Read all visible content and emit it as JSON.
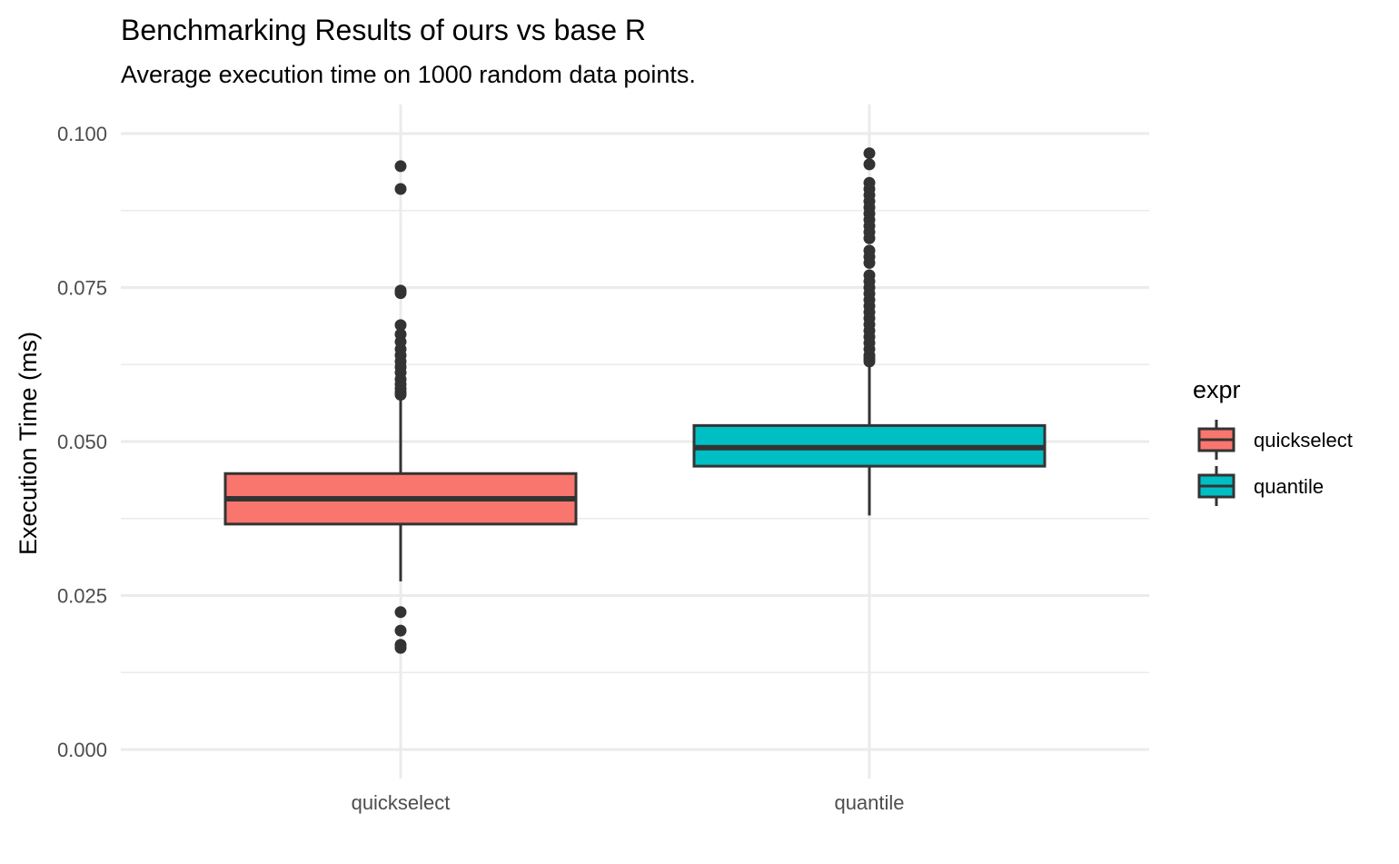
{
  "chart_data": {
    "type": "boxplot",
    "title": "Benchmarking Results of ours vs base R",
    "subtitle": "Average execution time on 1000 random data points.",
    "xlabel": "",
    "ylabel": "Execution Time (ms)",
    "ylim": [
      0,
      0.1
    ],
    "y_ticks": [
      "0.000",
      "0.025",
      "0.050",
      "0.075",
      "0.100"
    ],
    "y_tick_values": [
      0,
      0.025,
      0.05,
      0.075,
      0.1
    ],
    "categories": [
      "quickselect",
      "quantile"
    ],
    "grid": true,
    "legend": {
      "title": "expr",
      "position": "right",
      "entries": [
        "quickselect",
        "quantile"
      ]
    },
    "series": [
      {
        "name": "quickselect",
        "color": "#F8766D",
        "q1": 0.0366,
        "median": 0.0407,
        "q3": 0.0448,
        "whisker_low": 0.0273,
        "whisker_high": 0.057,
        "outliers": [
          0.0947,
          0.091,
          0.0745,
          0.0741,
          0.0689,
          0.0674,
          0.0662,
          0.065,
          0.064,
          0.063,
          0.0621,
          0.0612,
          0.0601,
          0.0593,
          0.0586,
          0.058,
          0.0576,
          0.0223,
          0.0193,
          0.017,
          0.0165
        ]
      },
      {
        "name": "quantile",
        "color": "#00BFC4",
        "q1": 0.046,
        "median": 0.049,
        "q3": 0.0526,
        "whisker_low": 0.038,
        "whisker_high": 0.0624,
        "outliers": [
          0.0968,
          0.095,
          0.092,
          0.091,
          0.09,
          0.089,
          0.088,
          0.087,
          0.086,
          0.085,
          0.084,
          0.083,
          0.081,
          0.08,
          0.079,
          0.077,
          0.076,
          0.075,
          0.074,
          0.073,
          0.072,
          0.071,
          0.07,
          0.069,
          0.068,
          0.067,
          0.066,
          0.065,
          0.064,
          0.0635,
          0.063
        ]
      }
    ]
  }
}
